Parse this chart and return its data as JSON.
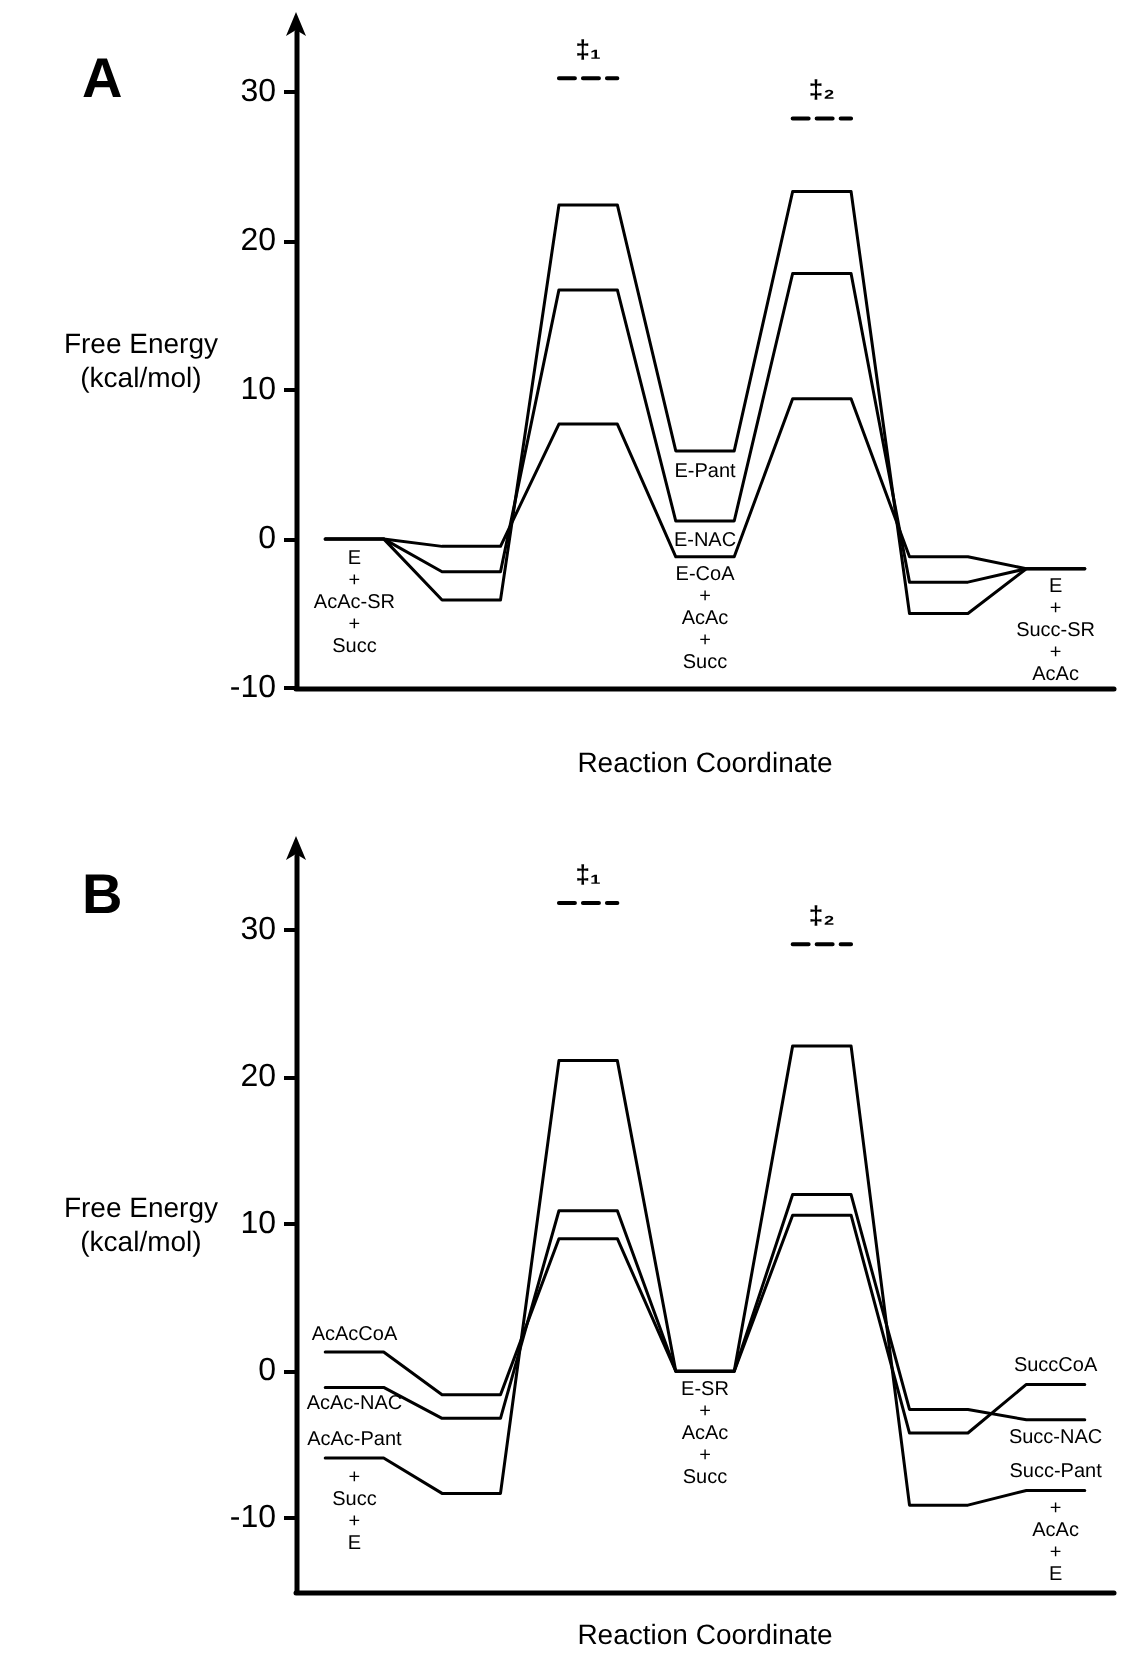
{
  "chart_data": [
    {
      "type": "line",
      "title": "A",
      "xlabel": "Reaction Coordinate",
      "ylabel": "Free Energy\n(kcal/mol)",
      "categories": [
        null,
        null,
        null,
        null,
        null,
        null,
        null,
        null,
        null,
        null,
        null,
        null,
        null,
        null
      ],
      "ylim": [
        -10,
        34
      ],
      "yticks": [
        -10,
        0,
        10,
        20,
        30
      ],
      "tick_labels": "y",
      "marker": "none",
      "series": [
        {
          "color": "#000000",
          "values": [
            0,
            0,
            -4.1,
            -4.1,
            22.4,
            22.4,
            5.9,
            5.9,
            23.3,
            23.3,
            -5.0,
            -5.0,
            -2.0,
            -2.0
          ]
        },
        {
          "color": "#000000",
          "values": [
            0,
            0,
            -2.2,
            -2.2,
            16.7,
            16.7,
            1.2,
            1.2,
            17.8,
            17.8,
            -2.9,
            -2.9,
            -2.0,
            -2.0
          ]
        },
        {
          "color": "#000000",
          "values": [
            0,
            0,
            -0.5,
            -0.5,
            7.7,
            7.7,
            -1.2,
            -1.2,
            9.4,
            9.4,
            -1.2,
            -1.2,
            -2.0,
            -2.0
          ]
        },
        {
          "name": "‡₁",
          "color": "#000000",
          "line_style": "dashed",
          "values": [
            null,
            null,
            null,
            null,
            30.9,
            30.9,
            null,
            null,
            null,
            null,
            null,
            null,
            null,
            null
          ]
        },
        {
          "name": "‡₂",
          "color": "#000000",
          "line_style": "dashed",
          "values": [
            null,
            null,
            null,
            null,
            null,
            null,
            null,
            null,
            28.2,
            28.2,
            null,
            null,
            null,
            null
          ]
        }
      ],
      "annotations": [
        {
          "text": "E\n+\nAcAc-SR\n+\nSucc",
          "y": -0.6
        },
        {
          "text": "E-Pant",
          "y": 5.2
        },
        {
          "text": "E-NAC",
          "y": 0.6
        },
        {
          "text": "E-CoA\n+\nAcAc\n+\nSucc",
          "y": -1.7
        },
        {
          "text": "E\n+\nSucc-SR\n+\nAcAc",
          "y": -2.5
        }
      ]
    },
    {
      "type": "line",
      "title": "B",
      "xlabel": "Reaction Coordinate",
      "ylabel": "Free Energy\n(kcal/mol)",
      "categories": [
        null,
        null,
        null,
        null,
        null,
        null,
        null,
        null,
        null,
        null,
        null,
        null,
        null,
        null
      ],
      "ylim": [
        -15,
        35
      ],
      "yticks": [
        -10,
        0,
        10,
        20,
        30
      ],
      "tick_labels": "y",
      "marker": "none",
      "series": [
        {
          "color": "#000000",
          "values": [
            1.3,
            1.3,
            -1.6,
            -1.6,
            9.0,
            9.0,
            0,
            0,
            10.6,
            10.6,
            -4.2,
            -4.2,
            -0.9,
            -0.9
          ]
        },
        {
          "color": "#000000",
          "values": [
            -1.1,
            -1.1,
            -3.2,
            -3.2,
            10.9,
            10.9,
            0,
            0,
            12.0,
            12.0,
            -2.6,
            -2.6,
            -3.3,
            -3.3
          ]
        },
        {
          "color": "#000000",
          "values": [
            -5.9,
            -5.9,
            -8.3,
            -8.3,
            21.1,
            21.1,
            0,
            0,
            22.1,
            22.1,
            -9.1,
            -9.1,
            -8.1,
            -8.1
          ]
        },
        {
          "name": "‡₁",
          "color": "#000000",
          "line_style": "dashed",
          "values": [
            null,
            null,
            null,
            null,
            31.8,
            31.8,
            null,
            null,
            null,
            null,
            null,
            null,
            null,
            null
          ]
        },
        {
          "name": "‡₂",
          "color": "#000000",
          "line_style": "dashed",
          "values": [
            null,
            null,
            null,
            null,
            null,
            null,
            null,
            null,
            29.0,
            29.0,
            null,
            null,
            null,
            null
          ]
        }
      ],
      "annotations": [
        {
          "text": "AcAcCoA",
          "y": 1.7
        },
        {
          "text": "AcAc-NAC",
          "y": -1.5
        },
        {
          "text": "AcAc-Pant",
          "y": -5.4
        },
        {
          "text": "+\nSucc\n+\nE",
          "y": -6.5
        },
        {
          "text": "E-SR\n+\nAcAc\n+\nSucc",
          "y": -0.5
        },
        {
          "text": "SuccCoA",
          "y": -0.4
        },
        {
          "text": "Succ-NAC",
          "y": -3.8
        },
        {
          "text": "Succ-Pant",
          "y": -7.6
        },
        {
          "text": "+\nAcAc\n+\nE",
          "y": -8.6
        }
      ]
    }
  ]
}
